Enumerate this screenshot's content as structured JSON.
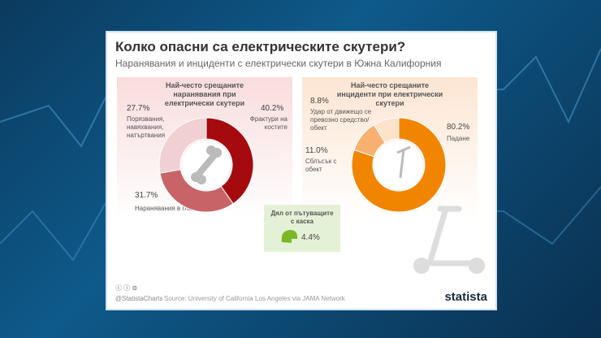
{
  "title": "Колко опасни са електрическите скутери?",
  "subtitle": "Наранявания и инциденти с електрически скутери в Южна Калифорния",
  "chart_data": [
    {
      "type": "pie",
      "title": "Най-често срещаните наранявания при електрически скутери",
      "slices": [
        {
          "label": "Фрактури на костите",
          "value": 40.2,
          "pct": "40.2%",
          "color": "#a50a0f"
        },
        {
          "label": "Наранявания в главата",
          "value": 31.7,
          "pct": "31.7%",
          "color": "#c86467"
        },
        {
          "label": "Порязвания, навяхвания, натъртвания",
          "value": 27.7,
          "pct": "27.7%",
          "color": "#f0d0d3"
        }
      ]
    },
    {
      "type": "pie",
      "title": "Най-често срещаните инциденти при електрически скутери",
      "slices": [
        {
          "label": "Падане",
          "value": 80.2,
          "pct": "80.2%",
          "color": "#f28500"
        },
        {
          "label": "Сблъсък с обект",
          "value": 11.0,
          "pct": "11.0%",
          "color": "#f8b070"
        },
        {
          "label": "Удар от движещо се превозно средство/обект",
          "value": 8.8,
          "pct": "8.8%",
          "color": "#fde3cc"
        }
      ]
    }
  ],
  "helmet": {
    "label": "Дял от пътуващите с каска",
    "pct": "4.4%"
  },
  "footer": {
    "handle": "@StatistaCharts",
    "source": "Source: University of California Los Angeles via JAMA Network",
    "logo": "statista"
  }
}
